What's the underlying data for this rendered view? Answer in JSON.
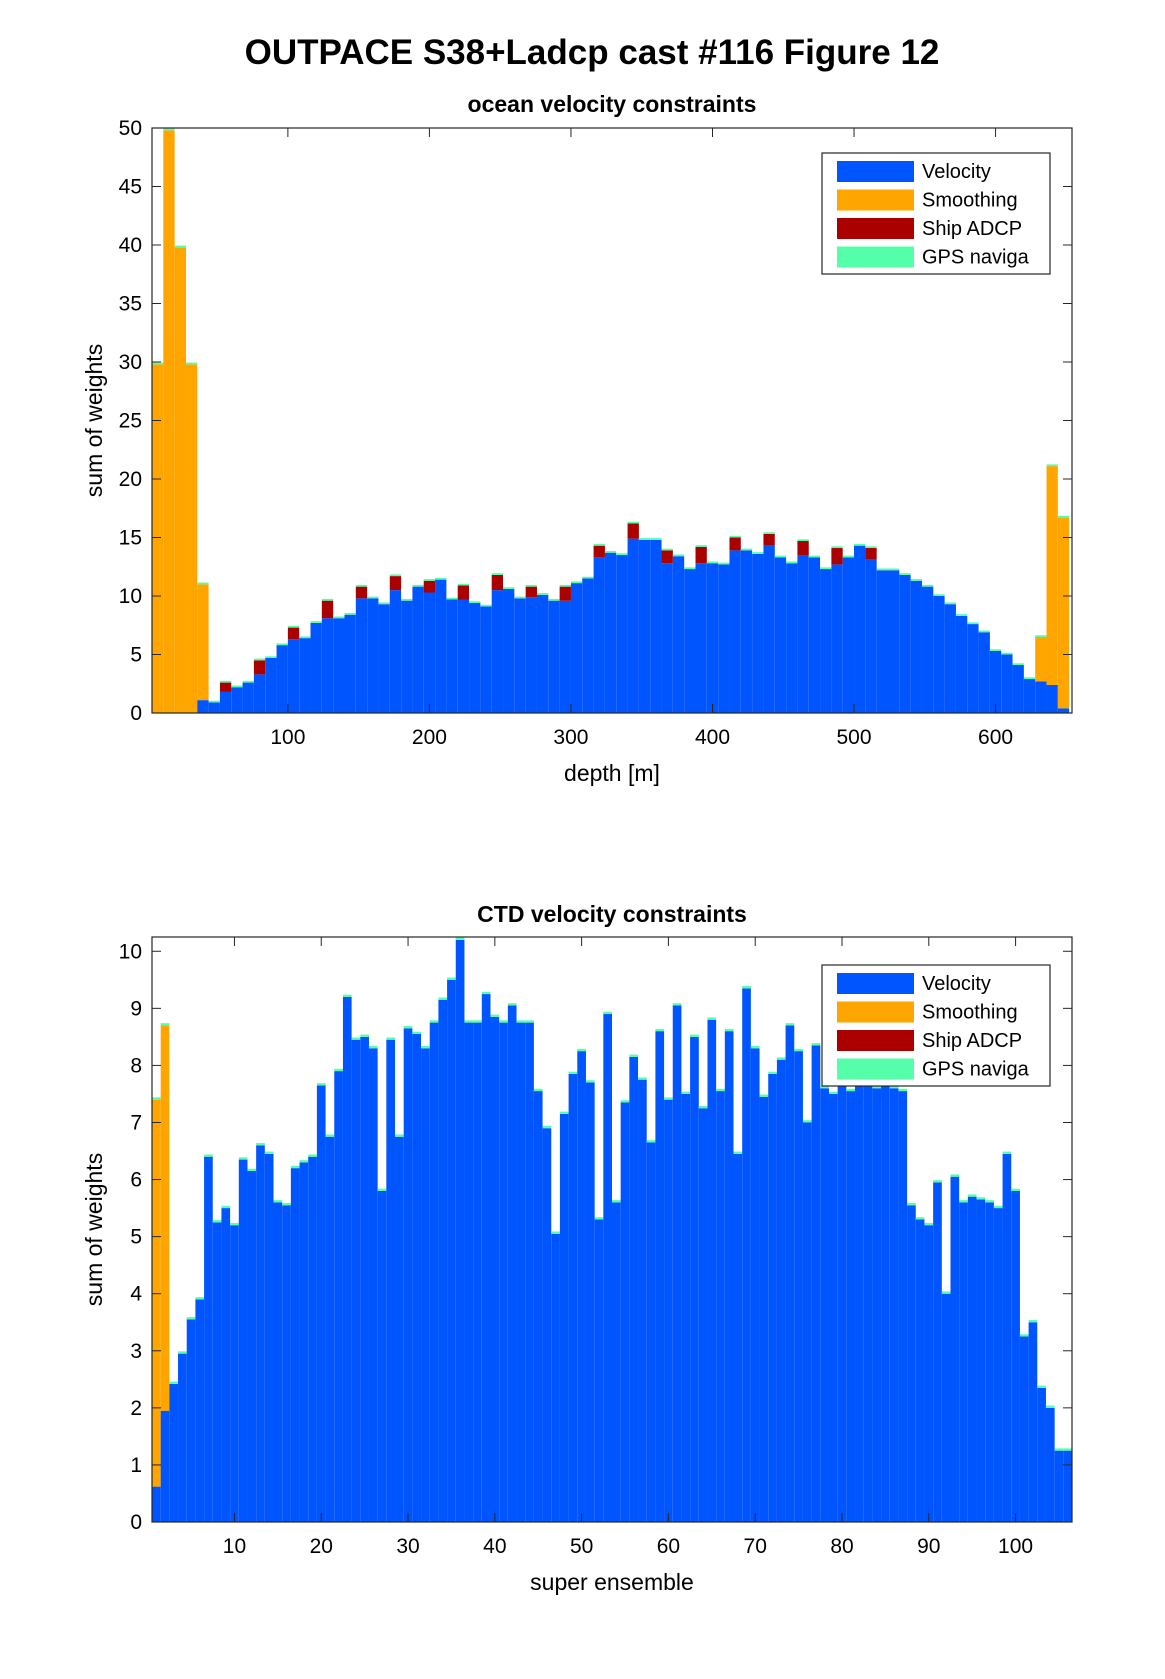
{
  "figure": {
    "title": "OUTPACE S38+Ladcp cast #116  Figure 12"
  },
  "colors": {
    "velocity": "#0055ff",
    "smoothing": "#ffa500",
    "ship_adcp": "#aa0000",
    "gps": "#55ffaa"
  },
  "chart_data": [
    {
      "type": "bar",
      "stacked": true,
      "title": "ocean velocity constraints",
      "xlabel": "depth [m]",
      "ylabel": "sum of weights",
      "xlim": [
        4,
        654
      ],
      "ylim": [
        0,
        50
      ],
      "xticks": [
        100,
        200,
        300,
        400,
        500,
        600
      ],
      "yticks": [
        0,
        5,
        10,
        15,
        20,
        25,
        30,
        35,
        40,
        45,
        50
      ],
      "grid": false,
      "legend_location": "top-right",
      "bin_width": 8,
      "x": [
        8,
        16,
        24,
        32,
        40,
        48,
        56,
        64,
        72,
        80,
        88,
        96,
        104,
        112,
        120,
        128,
        136,
        144,
        152,
        160,
        168,
        176,
        184,
        192,
        200,
        208,
        216,
        224,
        232,
        240,
        248,
        256,
        264,
        272,
        280,
        288,
        296,
        304,
        312,
        320,
        328,
        336,
        344,
        352,
        360,
        368,
        376,
        384,
        392,
        400,
        408,
        416,
        424,
        432,
        440,
        448,
        456,
        464,
        472,
        480,
        488,
        496,
        504,
        512,
        520,
        528,
        536,
        544,
        552,
        560,
        568,
        576,
        584,
        592,
        600,
        608,
        616,
        624,
        632,
        640,
        648
      ],
      "series": [
        {
          "name": "Velocity",
          "values": [
            0,
            0,
            0,
            0,
            1.1,
            0.9,
            1.8,
            2.2,
            2.6,
            3.3,
            4.7,
            5.8,
            6.3,
            6.4,
            7.7,
            8.1,
            8.1,
            8.4,
            9.8,
            9.8,
            9.3,
            10.5,
            9.6,
            10.8,
            10.3,
            11.4,
            9.7,
            9.7,
            9.4,
            9.1,
            10.5,
            10.6,
            9.8,
            9.9,
            10.1,
            9.6,
            9.6,
            11.1,
            11.5,
            13.3,
            13.7,
            13.5,
            14.9,
            14.8,
            14.8,
            12.8,
            13.4,
            12.3,
            12.8,
            12.8,
            12.7,
            13.9,
            13.9,
            13.6,
            14.3,
            13.3,
            12.8,
            13.5,
            13.3,
            12.3,
            12.7,
            13.3,
            14.3,
            13.1,
            12.2,
            12.2,
            11.8,
            11.3,
            10.8,
            10.0,
            9.3,
            8.3,
            7.6,
            6.9,
            5.3,
            5.0,
            4.1,
            2.9,
            2.7,
            2.4,
            0.4
          ],
          "stack_base": [
            0,
            0,
            0,
            0,
            0,
            0,
            0,
            0,
            0,
            0,
            0,
            0,
            0,
            0,
            0,
            0,
            0,
            0,
            0,
            0,
            0,
            0,
            0,
            0,
            0,
            0,
            0,
            0,
            0,
            0,
            0,
            0,
            0,
            0,
            0,
            0,
            0,
            0,
            0,
            0,
            0,
            0,
            0,
            0,
            0,
            0,
            0,
            0,
            0,
            0,
            0,
            0,
            0,
            0,
            0,
            0,
            0,
            0,
            0,
            0,
            0,
            0,
            0,
            0,
            0,
            0,
            0,
            0,
            0,
            0,
            0,
            0,
            0,
            0,
            0,
            0,
            0,
            0,
            0,
            0,
            0
          ]
        },
        {
          "name": "Smoothing",
          "values": [
            29.8,
            49.8,
            39.8,
            29.8,
            9.9,
            0,
            0,
            0,
            0,
            0,
            0,
            0,
            0,
            0,
            0,
            0,
            0,
            0,
            0,
            0,
            0,
            0,
            0,
            0,
            0,
            0,
            0,
            0,
            0,
            0,
            0,
            0,
            0,
            0,
            0,
            0,
            0,
            0,
            0,
            0,
            0,
            0,
            0,
            0,
            0,
            0,
            0,
            0,
            0,
            0,
            0,
            0,
            0,
            0,
            0,
            0,
            0,
            0,
            0,
            0,
            0,
            0,
            0,
            0,
            0,
            0,
            0,
            0,
            0,
            0,
            0,
            0,
            0,
            0,
            0,
            0,
            0,
            0,
            3.8,
            18.7,
            16.3
          ]
        },
        {
          "name": "Ship ADCP",
          "values": [
            0,
            0,
            0,
            0,
            0,
            0,
            0.8,
            0,
            0,
            1.2,
            0,
            0,
            1.0,
            0,
            0,
            1.5,
            0,
            0,
            1.0,
            0,
            0,
            1.2,
            0,
            0,
            1.0,
            0,
            0,
            1.2,
            0,
            0,
            1.3,
            0,
            0,
            0.9,
            0,
            0,
            1.2,
            0,
            0,
            1.0,
            0,
            0,
            1.3,
            0,
            0,
            1.1,
            0,
            0,
            1.4,
            0,
            0,
            1.1,
            0,
            0,
            1.0,
            0,
            0,
            1.2,
            0,
            0,
            1.4,
            0,
            0,
            1.0,
            0,
            0,
            0,
            0,
            0,
            0,
            0,
            0,
            0,
            0,
            0,
            0,
            0,
            0,
            0,
            0,
            0
          ]
        },
        {
          "name": "GPS naviga",
          "values": [
            0.15,
            0.15,
            0.15,
            0.15,
            0.15,
            0.15,
            0.15,
            0.15,
            0.15,
            0.15,
            0.15,
            0.15,
            0.15,
            0.15,
            0.15,
            0.15,
            0.15,
            0.15,
            0.15,
            0.15,
            0.15,
            0.15,
            0.15,
            0.15,
            0.15,
            0.15,
            0.15,
            0.15,
            0.15,
            0.15,
            0.15,
            0.15,
            0.15,
            0.15,
            0.15,
            0.15,
            0.15,
            0.15,
            0.15,
            0.15,
            0.15,
            0.15,
            0.15,
            0.15,
            0.15,
            0.15,
            0.15,
            0.15,
            0.15,
            0.15,
            0.15,
            0.15,
            0.15,
            0.15,
            0.15,
            0.15,
            0.15,
            0.15,
            0.15,
            0.15,
            0.15,
            0.15,
            0.15,
            0.15,
            0.15,
            0.15,
            0.15,
            0.15,
            0.15,
            0.15,
            0.15,
            0.15,
            0.15,
            0.15,
            0.15,
            0.15,
            0.15,
            0.15,
            0.15,
            0.15,
            0.15
          ]
        }
      ]
    },
    {
      "type": "bar",
      "stacked": true,
      "title": "CTD velocity constraints",
      "xlabel": "super ensemble",
      "ylabel": "sum of weights",
      "xlim": [
        0.5,
        106.5
      ],
      "ylim": [
        0,
        10.25
      ],
      "xticks": [
        10,
        20,
        30,
        40,
        50,
        60,
        70,
        80,
        90,
        100
      ],
      "yticks": [
        0,
        1,
        2,
        3,
        4,
        5,
        6,
        7,
        8,
        9,
        10
      ],
      "grid": false,
      "legend_location": "top-right",
      "bin_width": 1,
      "x": [
        1,
        2,
        3,
        4,
        5,
        6,
        7,
        8,
        9,
        10,
        11,
        12,
        13,
        14,
        15,
        16,
        17,
        18,
        19,
        20,
        21,
        22,
        23,
        24,
        25,
        26,
        27,
        28,
        29,
        30,
        31,
        32,
        33,
        34,
        35,
        36,
        37,
        38,
        39,
        40,
        41,
        42,
        43,
        44,
        45,
        46,
        47,
        48,
        49,
        50,
        51,
        52,
        53,
        54,
        55,
        56,
        57,
        58,
        59,
        60,
        61,
        62,
        63,
        64,
        65,
        66,
        67,
        68,
        69,
        70,
        71,
        72,
        73,
        74,
        75,
        76,
        77,
        78,
        79,
        80,
        81,
        82,
        83,
        84,
        85,
        86,
        87,
        88,
        89,
        90,
        91,
        92,
        93,
        94,
        95,
        96,
        97,
        98,
        99,
        100,
        101,
        102,
        103,
        104,
        105,
        106
      ],
      "series": [
        {
          "name": "Velocity",
          "values": [
            0.62,
            1.95,
            2.42,
            2.95,
            3.55,
            3.9,
            6.4,
            5.25,
            5.5,
            5.2,
            6.35,
            6.15,
            6.6,
            6.45,
            5.6,
            5.55,
            6.2,
            6.3,
            6.4,
            7.65,
            6.75,
            7.9,
            9.2,
            8.45,
            8.5,
            8.3,
            5.8,
            8.45,
            6.75,
            8.65,
            8.55,
            8.3,
            8.75,
            9.15,
            9.5,
            10.2,
            8.75,
            8.75,
            9.25,
            8.85,
            8.75,
            9.05,
            8.75,
            8.75,
            7.55,
            6.9,
            5.05,
            7.15,
            7.85,
            8.25,
            7.7,
            5.3,
            8.9,
            5.6,
            7.35,
            8.15,
            7.75,
            6.65,
            8.6,
            7.4,
            9.05,
            7.5,
            8.5,
            7.25,
            8.8,
            7.55,
            8.6,
            6.45,
            9.35,
            8.3,
            7.45,
            7.85,
            8.1,
            8.7,
            8.25,
            7.0,
            8.35,
            7.6,
            7.5,
            7.85,
            7.55,
            7.85,
            8.55,
            7.6,
            7.7,
            7.6,
            7.55,
            5.55,
            5.3,
            5.2,
            5.95,
            4.0,
            6.05,
            5.6,
            5.7,
            5.65,
            5.6,
            5.5,
            6.45,
            5.8,
            3.25,
            3.5,
            2.35,
            2.0,
            1.25,
            1.25
          ]
        },
        {
          "name": "Smoothing",
          "values": [
            6.78,
            6.75,
            0,
            0,
            0,
            0,
            0,
            0,
            0,
            0,
            0,
            0,
            0,
            0,
            0,
            0,
            0,
            0,
            0,
            0,
            0,
            0,
            0,
            0,
            0,
            0,
            0,
            0,
            0,
            0,
            0,
            0,
            0,
            0,
            0,
            0,
            0,
            0,
            0,
            0,
            0,
            0,
            0,
            0,
            0,
            0,
            0,
            0,
            0,
            0,
            0,
            0,
            0,
            0,
            0,
            0,
            0,
            0,
            0,
            0,
            0,
            0,
            0,
            0,
            0,
            0,
            0,
            0,
            0,
            0,
            0,
            0,
            0,
            0,
            0,
            0,
            0,
            0,
            0,
            0,
            0,
            0,
            0,
            0,
            0,
            0,
            0,
            0,
            0,
            0,
            0,
            0,
            0,
            0,
            0,
            0,
            0,
            0,
            0,
            0,
            0,
            0,
            0,
            0,
            0,
            0
          ]
        },
        {
          "name": "Ship ADCP",
          "values": [
            0,
            0,
            0,
            0,
            0,
            0,
            0,
            0,
            0,
            0,
            0,
            0,
            0,
            0,
            0,
            0,
            0,
            0,
            0,
            0,
            0,
            0,
            0,
            0,
            0,
            0,
            0,
            0,
            0,
            0,
            0,
            0,
            0,
            0,
            0,
            0,
            0,
            0,
            0,
            0,
            0,
            0,
            0,
            0,
            0,
            0,
            0,
            0,
            0,
            0,
            0,
            0,
            0,
            0,
            0,
            0,
            0,
            0,
            0,
            0,
            0,
            0,
            0,
            0,
            0,
            0,
            0,
            0,
            0,
            0,
            0,
            0,
            0,
            0,
            0,
            0,
            0,
            0,
            0,
            0,
            0,
            0,
            0,
            0,
            0,
            0,
            0,
            0,
            0,
            0,
            0,
            0,
            0,
            0,
            0,
            0,
            0,
            0,
            0,
            0,
            0,
            0,
            0,
            0,
            0,
            0
          ]
        },
        {
          "name": "GPS naviga",
          "values": [
            0.04,
            0.04,
            0.04,
            0.04,
            0.04,
            0.04,
            0.04,
            0.04,
            0.04,
            0.04,
            0.04,
            0.04,
            0.04,
            0.04,
            0.04,
            0.04,
            0.04,
            0.04,
            0.04,
            0.04,
            0.04,
            0.04,
            0.04,
            0.04,
            0.04,
            0.04,
            0.04,
            0.04,
            0.04,
            0.04,
            0.04,
            0.04,
            0.04,
            0.04,
            0.04,
            0.04,
            0.04,
            0.04,
            0.04,
            0.04,
            0.04,
            0.04,
            0.04,
            0.04,
            0.04,
            0.04,
            0.04,
            0.04,
            0.04,
            0.04,
            0.04,
            0.04,
            0.04,
            0.04,
            0.04,
            0.04,
            0.04,
            0.04,
            0.04,
            0.04,
            0.04,
            0.04,
            0.04,
            0.04,
            0.04,
            0.04,
            0.04,
            0.04,
            0.04,
            0.04,
            0.04,
            0.04,
            0.04,
            0.04,
            0.04,
            0.04,
            0.04,
            0.04,
            0.04,
            0.04,
            0.04,
            0.04,
            0.04,
            0.04,
            0.04,
            0.04,
            0.04,
            0.04,
            0.04,
            0.04,
            0.04,
            0.04,
            0.04,
            0.04,
            0.04,
            0.04,
            0.04,
            0.04,
            0.04,
            0.04,
            0.04,
            0.04,
            0.04,
            0.04,
            0.04,
            0.04
          ]
        }
      ]
    }
  ]
}
